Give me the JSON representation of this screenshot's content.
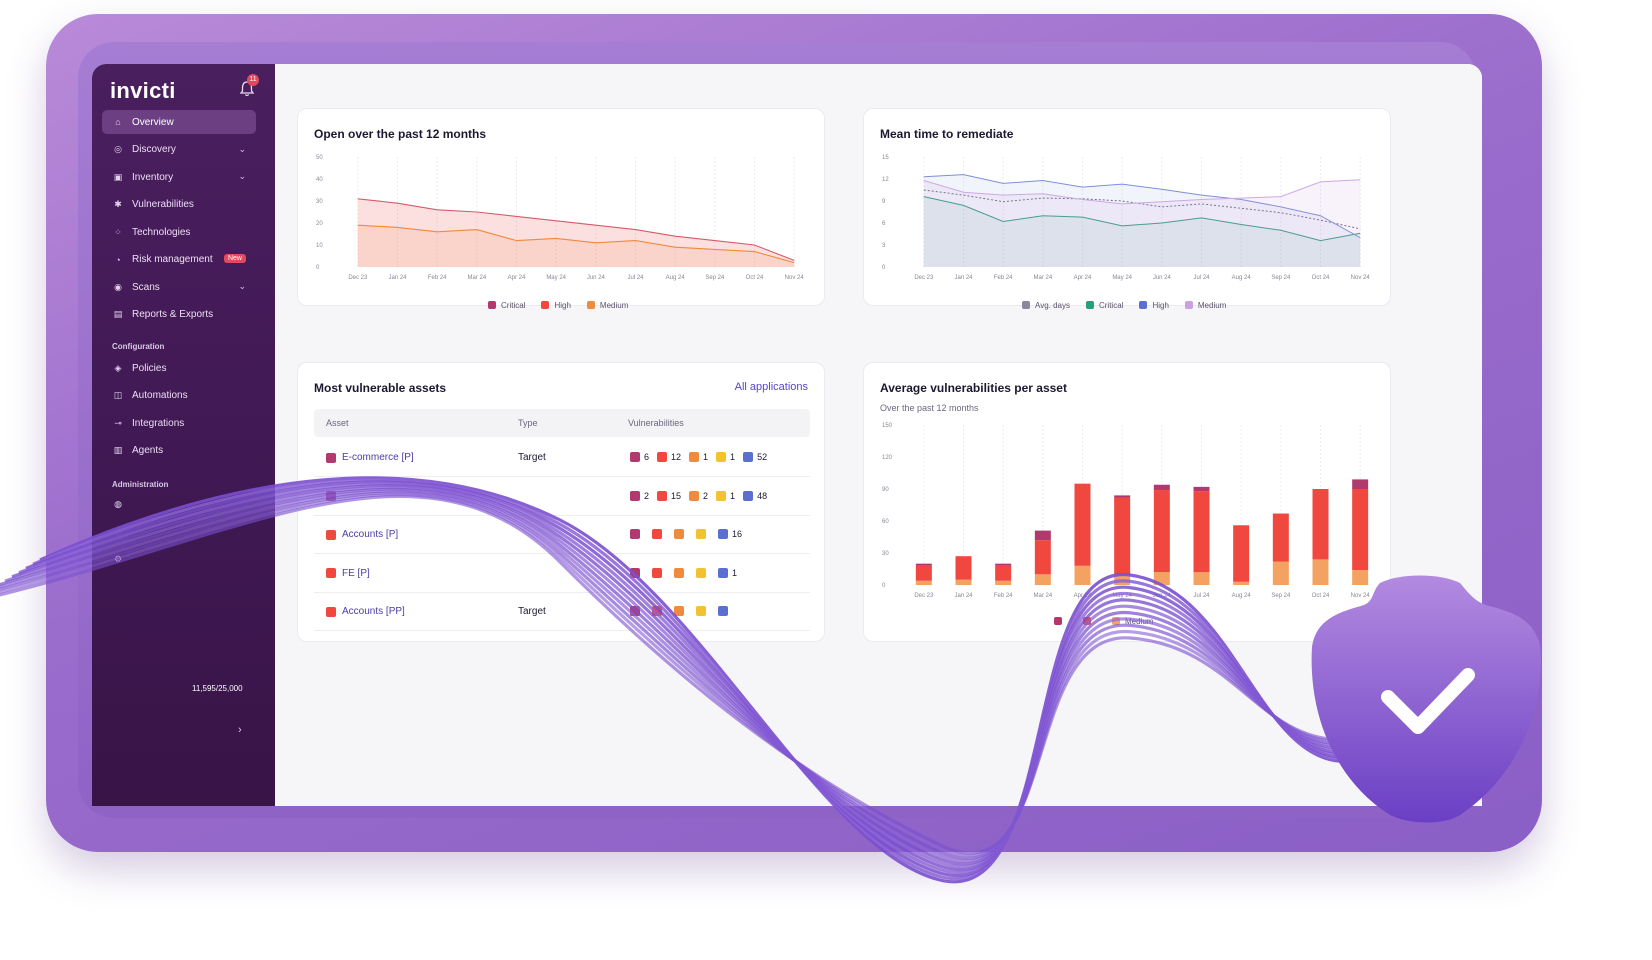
{
  "app": {
    "logo": "invicti",
    "notifications": "11"
  },
  "sidebar": {
    "items": [
      {
        "label": "Overview",
        "icon": "home-icon",
        "active": true
      },
      {
        "label": "Discovery",
        "icon": "radar-icon",
        "chevron": true
      },
      {
        "label": "Inventory",
        "icon": "box-icon",
        "chevron": true
      },
      {
        "label": "Vulnerabilities",
        "icon": "bug-icon"
      },
      {
        "label": "Technologies",
        "icon": "grid-icon"
      },
      {
        "label": "Risk management",
        "icon": "gauge-icon",
        "badge": "New"
      },
      {
        "label": "Scans",
        "icon": "scan-icon",
        "chevron": true
      },
      {
        "label": "Reports & Exports",
        "icon": "document-icon"
      }
    ],
    "config_heading": "Configuration",
    "config_items": [
      {
        "label": "Policies",
        "icon": "shield-icon"
      },
      {
        "label": "Automations",
        "icon": "robot-icon"
      },
      {
        "label": "Integrations",
        "icon": "plug-icon"
      },
      {
        "label": "Agents",
        "icon": "server-icon"
      }
    ],
    "admin_heading": "Administration",
    "admin_items": [
      {
        "label": "",
        "icon": "users-icon"
      },
      {
        "label": "",
        "icon": "audit-icon"
      },
      {
        "label": "",
        "icon": "gear-icon"
      }
    ],
    "fqdn_value": "11,595/25,000",
    "user_name": "",
    "user_org": ""
  },
  "open_chart": {
    "title": "Open over the past 12 months",
    "legend": [
      {
        "label": "Critical",
        "color": "#b03a6e"
      },
      {
        "label": "High",
        "color": "#f0473f"
      },
      {
        "label": "Medium",
        "color": "#f08a3c"
      }
    ]
  },
  "mttr_chart": {
    "title": "Mean time to remediate",
    "legend": [
      {
        "label": "Avg. days",
        "color": "#8c879a"
      },
      {
        "label": "Critical",
        "color": "#2a9d7a"
      },
      {
        "label": "High",
        "color": "#5a6fd0"
      },
      {
        "label": "Medium",
        "color": "#c9a0e0"
      }
    ]
  },
  "assets": {
    "title": "Most vulnerable assets",
    "link": "All applications",
    "columns": [
      "Asset",
      "Type",
      "Vulnerabilities"
    ],
    "rows": [
      {
        "asset": "E-commerce [P]",
        "type": "Target",
        "sq": "#b03a6e",
        "v": [
          "6",
          "12",
          "1",
          "1",
          "52"
        ]
      },
      {
        "asset": "",
        "type": "",
        "sq": "#b03a6e",
        "v": [
          "2",
          "15",
          "2",
          "1",
          "48"
        ]
      },
      {
        "asset": "Accounts [P]",
        "type": "",
        "sq": "#f0473f",
        "v": [
          "",
          "",
          "",
          "",
          "16"
        ]
      },
      {
        "asset": "FE [P]",
        "type": "",
        "sq": "#f0473f",
        "v": [
          "",
          "",
          "",
          "",
          "1"
        ]
      },
      {
        "asset": "Accounts [PP]",
        "type": "Target",
        "sq": "#f0473f",
        "v": [
          "",
          "",
          "",
          "",
          ""
        ]
      }
    ],
    "badge_colors": [
      "#b03a6e",
      "#f0473f",
      "#f08a3c",
      "#f2c230",
      "#5a6fd0"
    ]
  },
  "avg_chart": {
    "title": "Average vulnerabilities per asset",
    "subtitle": "Over the past 12 months",
    "legend": [
      {
        "label": "",
        "color": "#b03a6e"
      },
      {
        "label": "",
        "color": "#f0473f"
      },
      {
        "label": "Medium",
        "color": "#f4a261"
      }
    ]
  },
  "chart_data": [
    {
      "type": "area",
      "title": "Open over the past 12 months",
      "categories": [
        "Dec 23",
        "Jan 24",
        "Feb 24",
        "Mar 24",
        "Apr 24",
        "May 24",
        "Jun 24",
        "Jul 24",
        "Aug 24",
        "Sep 24",
        "Oct 24",
        "Nov 24"
      ],
      "ylim": [
        0,
        50
      ],
      "yticks": [
        0,
        10,
        20,
        30,
        40,
        50
      ],
      "series": [
        {
          "name": "Critical",
          "values": [
            31,
            29,
            26,
            25,
            23,
            21,
            19,
            17,
            14,
            12,
            10,
            3
          ]
        },
        {
          "name": "Medium",
          "values": [
            19,
            18,
            16,
            17,
            12,
            13,
            11,
            12,
            9,
            8,
            7,
            2
          ]
        }
      ]
    },
    {
      "type": "line",
      "title": "Mean time to remediate",
      "categories": [
        "Dec 23",
        "Jan 24",
        "Feb 24",
        "Mar 24",
        "Apr 24",
        "May 24",
        "Jun 24",
        "Jul 24",
        "Aug 24",
        "Sep 24",
        "Oct 24",
        "Nov 24"
      ],
      "ylim": [
        0,
        15
      ],
      "yticks": [
        0,
        3,
        6,
        9,
        12,
        15
      ],
      "series": [
        {
          "name": "Avg. days",
          "values": [
            10.5,
            9.8,
            8.9,
            9.4,
            9.3,
            9.0,
            8.2,
            8.6,
            8.0,
            7.4,
            6.4,
            5.2
          ]
        },
        {
          "name": "Critical",
          "values": [
            9.6,
            8.4,
            6.2,
            7.0,
            6.8,
            5.6,
            6.0,
            6.7,
            5.8,
            5.0,
            3.6,
            4.6
          ]
        },
        {
          "name": "High",
          "values": [
            12.3,
            12.6,
            11.4,
            11.8,
            10.9,
            11.3,
            10.6,
            9.8,
            9.2,
            8.2,
            7.0,
            4.0
          ]
        },
        {
          "name": "Medium",
          "values": [
            11.8,
            10.2,
            9.8,
            10.0,
            9.2,
            8.6,
            8.9,
            9.2,
            9.4,
            9.6,
            11.6,
            11.9
          ]
        }
      ]
    },
    {
      "type": "bar",
      "title": "Average vulnerabilities per asset",
      "categories": [
        "Dec 23",
        "Jan 24",
        "Feb 24",
        "Mar 24",
        "Apr 24",
        "May 24",
        "Jun 24",
        "Jul 24",
        "Aug 24",
        "Sep 24",
        "Oct 24",
        "Nov 24"
      ],
      "ylim": [
        0,
        150
      ],
      "yticks": [
        0,
        30,
        60,
        90,
        120,
        150
      ],
      "stacked": true,
      "series": [
        {
          "name": "Medium",
          "values": [
            4,
            5,
            4,
            10,
            18,
            10,
            12,
            12,
            3,
            22,
            24,
            14
          ]
        },
        {
          "name": "High",
          "values": [
            14,
            22,
            14,
            32,
            77,
            72,
            77,
            76,
            53,
            45,
            66,
            76
          ]
        },
        {
          "name": "Critical",
          "values": [
            2,
            0,
            2,
            9,
            0,
            2,
            5,
            4,
            0,
            0,
            0,
            9
          ]
        }
      ]
    }
  ]
}
